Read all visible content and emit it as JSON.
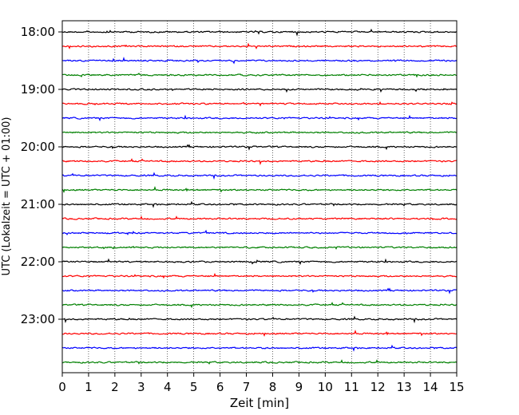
{
  "chart_data": {
    "type": "line",
    "title": "",
    "xlabel": "Zeit  [min]",
    "ylabel": "UTC (Lokalzeit = UTC + 01:00)",
    "xlim": [
      0,
      15
    ],
    "x_ticks": [
      "0",
      "1",
      "2",
      "3",
      "4",
      "5",
      "6",
      "7",
      "8",
      "9",
      "10",
      "11",
      "12",
      "13",
      "14",
      "15"
    ],
    "y_tick_labels": [
      "18:00",
      "19:00",
      "20:00",
      "21:00",
      "22:00",
      "23:00"
    ],
    "traces_per_hour": 4,
    "trace_start_times": [
      "18:00",
      "18:15",
      "18:30",
      "18:45",
      "19:00",
      "19:15",
      "19:30",
      "19:45",
      "20:00",
      "20:15",
      "20:30",
      "20:45",
      "21:00",
      "21:15",
      "21:30",
      "21:45",
      "22:00",
      "22:15",
      "22:30",
      "22:45",
      "23:00",
      "23:15",
      "23:30",
      "23:45"
    ],
    "trace_colors": [
      "#000000",
      "#ff0000",
      "#0000ff",
      "#008000"
    ],
    "grid": "vertical dotted lines at each minute",
    "legend": "none"
  }
}
